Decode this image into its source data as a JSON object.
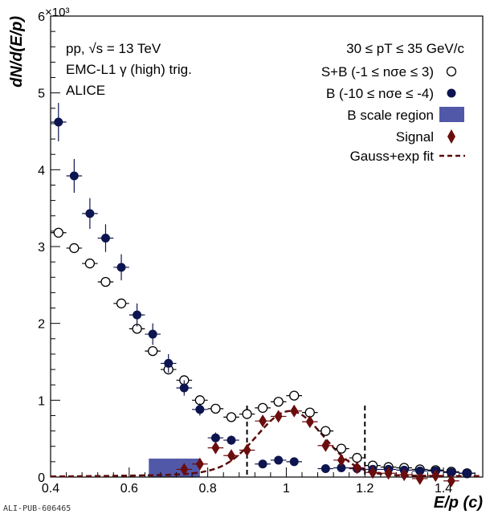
{
  "chart_data": {
    "type": "scatter",
    "xlabel": "E/p (c)",
    "ylabel": "dN/d(E/p)",
    "y_multiplier": "×10³",
    "xlim": [
      0.4,
      1.5
    ],
    "ylim": [
      0,
      6
    ],
    "x_ticks": [
      "0.4",
      "0.6",
      "0.8",
      "1",
      "1.2",
      "1.4"
    ],
    "y_ticks": [
      "0",
      "1",
      "2",
      "3",
      "4",
      "5",
      "6"
    ],
    "annotations": {
      "system": "pp, √s = 13 TeV",
      "trigger": "EMC-L1 γ (high) trig.",
      "experiment": "ALICE",
      "pt_range": "30 ≤ pT ≤ 35 GeV/c",
      "pub_id": "ALI-PUB-606465"
    },
    "legend": [
      {
        "label": "S+B (-1 ≤ nσe ≤ 3)",
        "marker": "open-circle"
      },
      {
        "label": "B (-10 ≤ nσe ≤ -4)",
        "marker": "filled-circle"
      },
      {
        "label": "B scale region",
        "marker": "box"
      },
      {
        "label": "Signal",
        "marker": "diamond"
      },
      {
        "label": "Gauss+exp fit",
        "marker": "dashed-line"
      }
    ],
    "colors": {
      "sb": "#000000",
      "bkg": "#0d1550",
      "signal": "#6b0d0d",
      "fit": "#5a0c0c",
      "region": "#5258a8"
    },
    "scale_region": [
      0.65,
      0.78
    ],
    "cut_lines": [
      0.9,
      1.2
    ],
    "series": [
      {
        "name": "S+B",
        "x": [
          0.42,
          0.46,
          0.5,
          0.54,
          0.58,
          0.62,
          0.66,
          0.7,
          0.74,
          0.78,
          0.82,
          0.86,
          0.9,
          0.94,
          0.98,
          1.02,
          1.06,
          1.1,
          1.14,
          1.18,
          1.22,
          1.26,
          1.3,
          1.34,
          1.38,
          1.42,
          1.46
        ],
        "y": [
          3.18,
          2.98,
          2.78,
          2.54,
          2.26,
          1.93,
          1.64,
          1.4,
          1.26,
          1.0,
          0.89,
          0.78,
          0.82,
          0.9,
          0.98,
          1.06,
          0.84,
          0.6,
          0.37,
          0.25,
          0.15,
          0.13,
          0.12,
          0.1,
          0.09,
          0.07,
          0.05
        ]
      },
      {
        "name": "B",
        "x": [
          0.42,
          0.46,
          0.5,
          0.54,
          0.58,
          0.62,
          0.66,
          0.7,
          0.74,
          0.78,
          0.82,
          0.86,
          0.94,
          0.98,
          1.02,
          1.1,
          1.14,
          1.18,
          1.22,
          1.26,
          1.3,
          1.34,
          1.38,
          1.42,
          1.46
        ],
        "y": [
          4.62,
          3.92,
          3.43,
          3.11,
          2.73,
          2.11,
          1.86,
          1.48,
          1.16,
          0.88,
          0.51,
          0.48,
          0.17,
          0.22,
          0.2,
          0.11,
          0.12,
          0.11,
          0.1,
          0.1,
          0.09,
          0.08,
          0.08,
          0.06,
          0.05
        ],
        "yerr": [
          0.25,
          0.22,
          0.2,
          0.18,
          0.17,
          0.15,
          0.14,
          0.12,
          0.1,
          0.08,
          0.07,
          0.06,
          0.04,
          0.04,
          0.04,
          0.03,
          0.03,
          0.03,
          0.03,
          0.03,
          0.03,
          0.03,
          0.03,
          0.03,
          0.03
        ]
      },
      {
        "name": "Signal",
        "x": [
          0.74,
          0.78,
          0.82,
          0.86,
          0.9,
          0.94,
          0.98,
          1.02,
          1.06,
          1.1,
          1.14,
          1.18,
          1.22,
          1.26,
          1.3,
          1.34,
          1.38,
          1.42
        ],
        "y": [
          0.1,
          0.17,
          0.38,
          0.28,
          0.35,
          0.73,
          0.79,
          0.86,
          0.72,
          0.41,
          0.22,
          0.12,
          0.06,
          0.05,
          0.03,
          -0.02,
          0.02,
          -0.05
        ]
      }
    ]
  }
}
